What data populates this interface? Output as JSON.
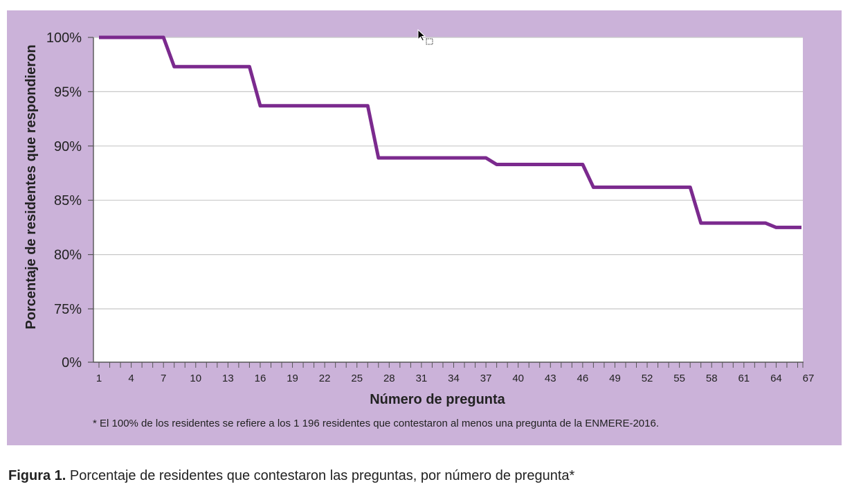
{
  "colors": {
    "panel_background": "#cbb2d9",
    "plot_background": "#ffffff",
    "line": "#7b2a8e",
    "gridline": "#c8c8c8"
  },
  "chart_data": {
    "type": "line",
    "xlabel": "Número de pregunta",
    "ylabel": "Porcentaje de residentes que respondieron",
    "x_tick_labels": [
      "1",
      "4",
      "7",
      "10",
      "13",
      "16",
      "19",
      "22",
      "25",
      "28",
      "31",
      "34",
      "37",
      "40",
      "43",
      "46",
      "49",
      "52",
      "55",
      "58",
      "61",
      "64",
      "67"
    ],
    "y_tick_labels": [
      "0%",
      "75%",
      "80%",
      "85%",
      "90%",
      "95%",
      "100%"
    ],
    "y_ticks": [
      0,
      75,
      80,
      85,
      90,
      95,
      100
    ],
    "y_axis_break": "0% shown at bottom, axis jumps to 75%",
    "xlim": [
      1,
      67
    ],
    "grid": "horizontal",
    "series": [
      {
        "x": [
          1,
          7,
          8,
          15,
          16,
          26,
          27,
          37,
          38,
          46,
          47,
          56,
          57,
          63,
          64,
          67
        ],
        "y": [
          100,
          100,
          97.3,
          97.3,
          93.7,
          93.7,
          88.9,
          88.9,
          88.3,
          88.3,
          86.2,
          86.2,
          82.9,
          82.9,
          82.5,
          82.5
        ]
      }
    ]
  },
  "footnote": "* El 100% de los residentes se refiere a los 1 196 residentes que contestaron al menos una pregunta de la ENMERE-2016.",
  "caption": {
    "label": "Figura 1.",
    "text": " Porcentaje de residentes que contestaron las preguntas, por número de pregunta*"
  }
}
